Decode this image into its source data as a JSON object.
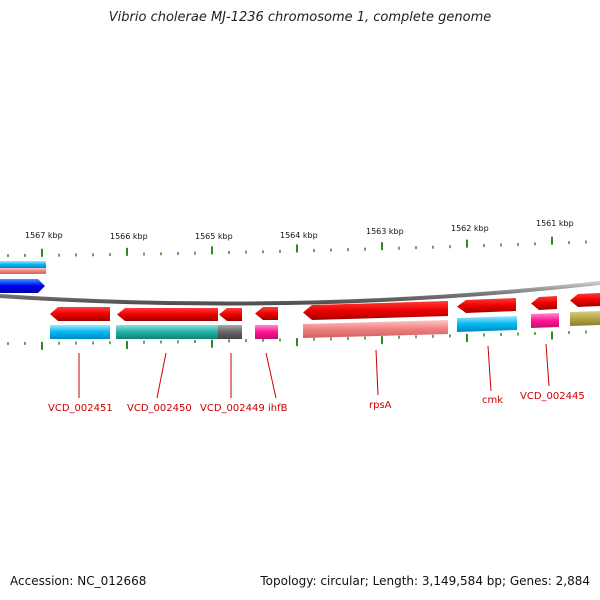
{
  "title": "Vibrio cholerae MJ-1236 chromosome 1, complete genome",
  "footer": {
    "accession": "Accession: NC_012668",
    "summary": "Topology: circular; Length: 3,149,584 bp; Genes: 2,884"
  },
  "colors": {
    "tick": "#2e8b1f",
    "label": "#cc0000",
    "backbone": "#7a7a7a"
  },
  "scale_labels": [
    "1567 kbp",
    "1566 kbp",
    "1565 kbp",
    "1564 kbp",
    "1563 kbp",
    "1562 kbp",
    "1561 kbp"
  ],
  "gene_labels": [
    "VCD_002451",
    "VCD_002450",
    "VCD_002449",
    "ihfB",
    "rpsA",
    "cmk",
    "VCD_002445"
  ],
  "cog_colors": [
    "#ffb3b3",
    "#00bfff",
    "#20b2aa",
    "#666666",
    "#ff1493",
    "#f08080",
    "#b5a642",
    "#0000ff"
  ]
}
